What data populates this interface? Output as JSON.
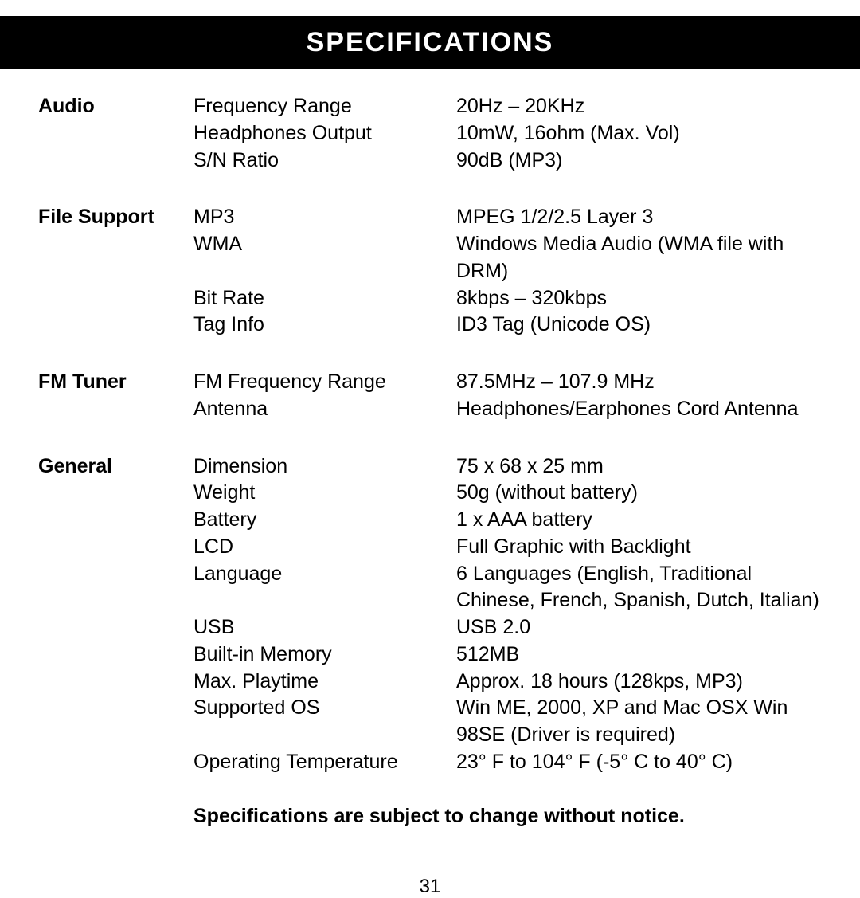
{
  "header": {
    "title": "SPECIFICATIONS"
  },
  "styling": {
    "header_bg": "#000000",
    "header_text": "#ffffff",
    "body_text": "#000000",
    "body_bg": "#ffffff",
    "title_fontsize": 34,
    "body_fontsize": 25
  },
  "sections": [
    {
      "category": "Audio",
      "rows": [
        {
          "param": "Frequency Range",
          "value": "20Hz – 20KHz"
        },
        {
          "param": "Headphones Output",
          "value": "10mW, 16ohm (Max. Vol)"
        },
        {
          "param": "S/N Ratio",
          "value": "90dB (MP3)"
        }
      ]
    },
    {
      "category": "File Support",
      "rows": [
        {
          "param": "MP3",
          "value": "MPEG 1/2/2.5 Layer 3"
        },
        {
          "param": "WMA",
          "value": "Windows Media Audio (WMA file with DRM)"
        },
        {
          "param": "Bit Rate",
          "value": "8kbps – 320kbps"
        },
        {
          "param": "Tag Info",
          "value": "ID3 Tag (Unicode OS)"
        }
      ]
    },
    {
      "category": "FM Tuner",
      "rows": [
        {
          "param": "FM Frequency Range",
          "value": "87.5MHz – 107.9 MHz"
        },
        {
          "param": "Antenna",
          "value": "Headphones/Earphones Cord Antenna"
        }
      ]
    },
    {
      "category": "General",
      "rows": [
        {
          "param": "Dimension",
          "value": "75 x 68 x 25 mm"
        },
        {
          "param": "Weight",
          "value": "50g (without battery)"
        },
        {
          "param": "Battery",
          "value": "1 x AAA battery"
        },
        {
          "param": "LCD",
          "value": "Full Graphic with Backlight"
        },
        {
          "param": "Language",
          "value": "6 Languages (English, Traditional Chinese, French, Spanish, Dutch, Italian)"
        },
        {
          "param": "USB",
          "value": "USB 2.0"
        },
        {
          "param": "Built-in Memory",
          "value": "512MB"
        },
        {
          "param": "Max. Playtime",
          "value": "Approx. 18 hours (128kps, MP3)"
        },
        {
          "param": "Supported OS",
          "value": "Win ME, 2000, XP and Mac OSX Win 98SE (Driver is required)"
        },
        {
          "param": "Operating Temperature",
          "value": "23° F to 104° F (-5° C to 40° C)"
        }
      ]
    }
  ],
  "footer_note": "Specifications are subject to change without notice.",
  "page_number": "31"
}
